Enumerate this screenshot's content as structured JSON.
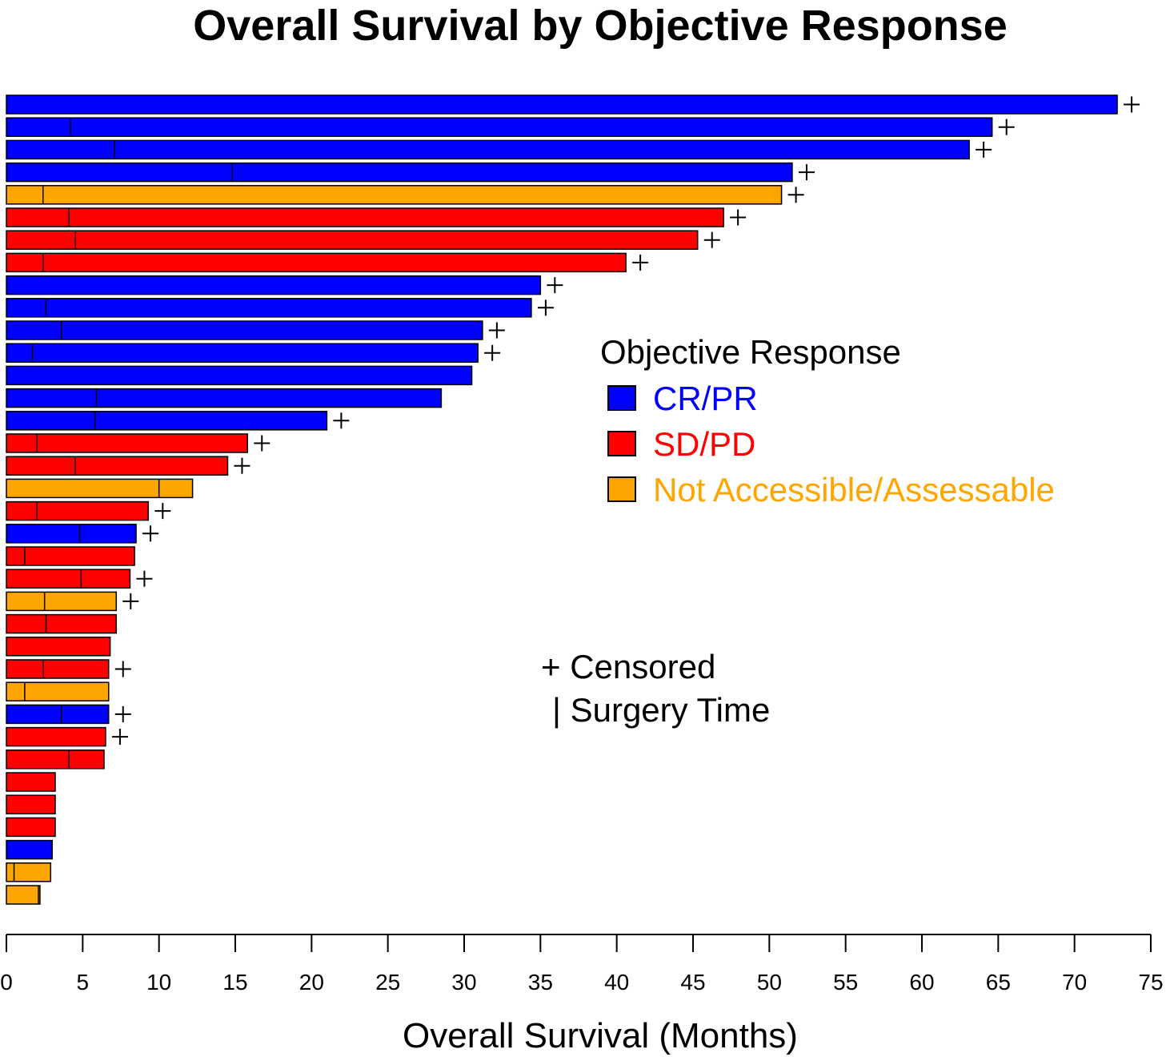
{
  "chart_data": {
    "type": "bar",
    "orientation": "horizontal",
    "title": "Overall Survival by Objective Response",
    "xlabel": "Overall Survival (Months)",
    "ylabel": "",
    "xlim": [
      0,
      75
    ],
    "xticks": [
      0,
      5,
      10,
      15,
      20,
      25,
      30,
      35,
      40,
      45,
      50,
      55,
      60,
      65,
      70,
      75
    ],
    "legend": {
      "title": "Objective Response",
      "placement": "right",
      "entries": [
        {
          "key": "CR/PR",
          "label": "CR/PR",
          "color": "#0000ff"
        },
        {
          "key": "SD/PD",
          "label": "SD/PD",
          "color": "#ff0000"
        },
        {
          "key": "NA",
          "label": "Not Accessible/Assessable",
          "color": "#ffa500"
        }
      ]
    },
    "annotations": {
      "censored": "+ Censored",
      "surgery": "| Surgery Time"
    },
    "censor_marker": "+",
    "bars": [
      {
        "response": "CR/PR",
        "os": 72.8,
        "surgery": null,
        "censored": true
      },
      {
        "response": "CR/PR",
        "os": 64.6,
        "surgery": 4.2,
        "censored": true
      },
      {
        "response": "CR/PR",
        "os": 63.1,
        "surgery": 7.1,
        "censored": true
      },
      {
        "response": "CR/PR",
        "os": 51.5,
        "surgery": 14.8,
        "censored": true
      },
      {
        "response": "NA",
        "os": 50.8,
        "surgery": 2.4,
        "censored": true
      },
      {
        "response": "SD/PD",
        "os": 47.0,
        "surgery": 4.1,
        "censored": true
      },
      {
        "response": "SD/PD",
        "os": 45.3,
        "surgery": 4.5,
        "censored": true
      },
      {
        "response": "SD/PD",
        "os": 40.6,
        "surgery": 2.4,
        "censored": true
      },
      {
        "response": "CR/PR",
        "os": 35.0,
        "surgery": null,
        "censored": true
      },
      {
        "response": "CR/PR",
        "os": 34.4,
        "surgery": 2.6,
        "censored": true
      },
      {
        "response": "CR/PR",
        "os": 31.2,
        "surgery": 3.6,
        "censored": true
      },
      {
        "response": "CR/PR",
        "os": 30.9,
        "surgery": 1.7,
        "censored": true
      },
      {
        "response": "CR/PR",
        "os": 30.5,
        "surgery": null,
        "censored": false
      },
      {
        "response": "CR/PR",
        "os": 28.5,
        "surgery": 5.9,
        "censored": false
      },
      {
        "response": "CR/PR",
        "os": 21.0,
        "surgery": 5.8,
        "censored": true
      },
      {
        "response": "SD/PD",
        "os": 15.8,
        "surgery": 2.0,
        "censored": true
      },
      {
        "response": "SD/PD",
        "os": 14.5,
        "surgery": 4.5,
        "censored": true
      },
      {
        "response": "NA",
        "os": 12.2,
        "surgery": 10.0,
        "censored": false
      },
      {
        "response": "SD/PD",
        "os": 9.3,
        "surgery": 2.0,
        "censored": true
      },
      {
        "response": "CR/PR",
        "os": 8.5,
        "surgery": 4.8,
        "censored": true
      },
      {
        "response": "SD/PD",
        "os": 8.4,
        "surgery": 1.2,
        "censored": false
      },
      {
        "response": "SD/PD",
        "os": 8.1,
        "surgery": 4.9,
        "censored": true
      },
      {
        "response": "NA",
        "os": 7.2,
        "surgery": 2.5,
        "censored": true
      },
      {
        "response": "SD/PD",
        "os": 7.2,
        "surgery": 2.6,
        "censored": false
      },
      {
        "response": "SD/PD",
        "os": 6.8,
        "surgery": null,
        "censored": false
      },
      {
        "response": "SD/PD",
        "os": 6.7,
        "surgery": 2.4,
        "censored": true
      },
      {
        "response": "NA",
        "os": 6.7,
        "surgery": 1.2,
        "censored": false
      },
      {
        "response": "CR/PR",
        "os": 6.7,
        "surgery": 3.6,
        "censored": true
      },
      {
        "response": "SD/PD",
        "os": 6.5,
        "surgery": null,
        "censored": true
      },
      {
        "response": "SD/PD",
        "os": 6.4,
        "surgery": 4.1,
        "censored": false
      },
      {
        "response": "SD/PD",
        "os": 3.2,
        "surgery": null,
        "censored": false
      },
      {
        "response": "SD/PD",
        "os": 3.2,
        "surgery": null,
        "censored": false
      },
      {
        "response": "SD/PD",
        "os": 3.2,
        "surgery": null,
        "censored": false
      },
      {
        "response": "CR/PR",
        "os": 3.0,
        "surgery": null,
        "censored": false
      },
      {
        "response": "NA",
        "os": 2.9,
        "surgery": 0.5,
        "censored": false
      },
      {
        "response": "NA",
        "os": 2.2,
        "surgery": 2.1,
        "censored": false
      }
    ]
  }
}
